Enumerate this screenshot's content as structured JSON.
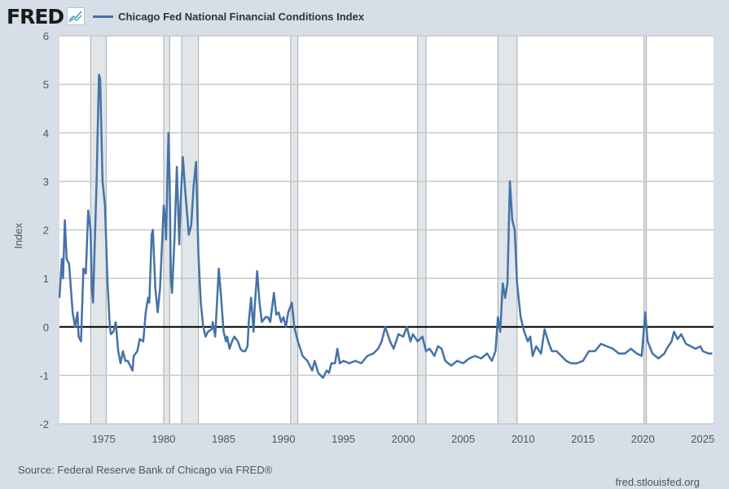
{
  "header": {
    "logo": "FRED",
    "logo_icon": "chart-line-icon",
    "legend_label": "Chicago Fed National Financial Conditions Index"
  },
  "footer": {
    "source": "Source: Federal Reserve Bank of Chicago via FRED®",
    "url": "fred.stlouisfed.org"
  },
  "chart_data": {
    "type": "line",
    "title": "",
    "xlabel": "",
    "ylabel": "Index",
    "xlim": [
      1971.3,
      2025.9
    ],
    "ylim": [
      -2,
      6
    ],
    "grid": "horizontal",
    "legend": "top-left",
    "y_ticks": [
      -2,
      -1,
      0,
      1,
      2,
      3,
      4,
      5,
      6
    ],
    "x_ticks": [
      1975,
      1980,
      1985,
      1990,
      1995,
      2000,
      2005,
      2010,
      2015,
      2020,
      2025
    ],
    "line_color": "#4572a7",
    "recessions": [
      [
        1973.9,
        1975.2
      ],
      [
        1980.0,
        1980.5
      ],
      [
        1981.5,
        1982.9
      ],
      [
        1990.6,
        1991.2
      ],
      [
        2001.2,
        2001.9
      ],
      [
        2007.9,
        2009.5
      ],
      [
        2020.1,
        2020.3
      ]
    ],
    "series": [
      {
        "name": "Chicago Fed National Financial Conditions Index",
        "points": [
          [
            1971.3,
            0.6
          ],
          [
            1971.5,
            1.4
          ],
          [
            1971.6,
            1.0
          ],
          [
            1971.75,
            2.2
          ],
          [
            1971.9,
            1.4
          ],
          [
            1972.1,
            1.3
          ],
          [
            1972.4,
            0.3
          ],
          [
            1972.6,
            0.0
          ],
          [
            1972.8,
            0.3
          ],
          [
            1972.9,
            -0.2
          ],
          [
            1973.1,
            -0.3
          ],
          [
            1973.3,
            1.2
          ],
          [
            1973.5,
            1.1
          ],
          [
            1973.7,
            2.4
          ],
          [
            1973.9,
            2.0
          ],
          [
            1974.0,
            0.8
          ],
          [
            1974.1,
            0.5
          ],
          [
            1974.4,
            3.0
          ],
          [
            1974.6,
            5.2
          ],
          [
            1974.7,
            5.1
          ],
          [
            1974.9,
            3.0
          ],
          [
            1975.1,
            2.5
          ],
          [
            1975.3,
            1.0
          ],
          [
            1975.5,
            0.0
          ],
          [
            1975.6,
            -0.15
          ],
          [
            1975.8,
            -0.1
          ],
          [
            1976.0,
            0.1
          ],
          [
            1976.2,
            -0.5
          ],
          [
            1976.4,
            -0.75
          ],
          [
            1976.6,
            -0.5
          ],
          [
            1976.8,
            -0.7
          ],
          [
            1977.0,
            -0.7
          ],
          [
            1977.2,
            -0.8
          ],
          [
            1977.4,
            -0.9
          ],
          [
            1977.5,
            -0.6
          ],
          [
            1977.8,
            -0.5
          ],
          [
            1978.0,
            -0.25
          ],
          [
            1978.3,
            -0.3
          ],
          [
            1978.5,
            0.3
          ],
          [
            1978.7,
            0.6
          ],
          [
            1978.8,
            0.5
          ],
          [
            1979.0,
            1.9
          ],
          [
            1979.1,
            2.0
          ],
          [
            1979.3,
            0.8
          ],
          [
            1979.5,
            0.3
          ],
          [
            1979.7,
            0.8
          ],
          [
            1980.0,
            2.5
          ],
          [
            1980.1,
            2.3
          ],
          [
            1980.2,
            1.8
          ],
          [
            1980.4,
            4.0
          ],
          [
            1980.5,
            3.0
          ],
          [
            1980.6,
            1.0
          ],
          [
            1980.7,
            0.7
          ],
          [
            1980.9,
            1.8
          ],
          [
            1981.1,
            3.3
          ],
          [
            1981.3,
            1.7
          ],
          [
            1981.4,
            2.5
          ],
          [
            1981.6,
            3.5
          ],
          [
            1981.8,
            2.8
          ],
          [
            1982.1,
            1.9
          ],
          [
            1982.3,
            2.1
          ],
          [
            1982.5,
            2.9
          ],
          [
            1982.7,
            3.4
          ],
          [
            1982.9,
            1.5
          ],
          [
            1983.1,
            0.5
          ],
          [
            1983.3,
            0.0
          ],
          [
            1983.5,
            -0.2
          ],
          [
            1983.7,
            -0.1
          ],
          [
            1984.0,
            -0.05
          ],
          [
            1984.1,
            0.1
          ],
          [
            1984.3,
            -0.2
          ],
          [
            1984.6,
            1.2
          ],
          [
            1984.8,
            0.6
          ],
          [
            1985.0,
            -0.1
          ],
          [
            1985.2,
            -0.3
          ],
          [
            1985.3,
            -0.2
          ],
          [
            1985.5,
            -0.45
          ],
          [
            1985.7,
            -0.3
          ],
          [
            1985.9,
            -0.2
          ],
          [
            1986.2,
            -0.3
          ],
          [
            1986.4,
            -0.45
          ],
          [
            1986.6,
            -0.5
          ],
          [
            1986.8,
            -0.5
          ],
          [
            1987.0,
            -0.4
          ],
          [
            1987.1,
            0.1
          ],
          [
            1987.3,
            0.6
          ],
          [
            1987.5,
            -0.1
          ],
          [
            1987.6,
            0.4
          ],
          [
            1987.8,
            1.15
          ],
          [
            1988.0,
            0.5
          ],
          [
            1988.2,
            0.1
          ],
          [
            1988.5,
            0.2
          ],
          [
            1988.7,
            0.2
          ],
          [
            1988.9,
            0.1
          ],
          [
            1989.2,
            0.7
          ],
          [
            1989.4,
            0.25
          ],
          [
            1989.6,
            0.3
          ],
          [
            1989.8,
            0.1
          ],
          [
            1990.0,
            0.2
          ],
          [
            1990.2,
            0.0
          ],
          [
            1990.4,
            0.3
          ],
          [
            1990.7,
            0.5
          ],
          [
            1990.9,
            0.0
          ],
          [
            1991.2,
            -0.3
          ],
          [
            1991.6,
            -0.6
          ],
          [
            1992.0,
            -0.7
          ],
          [
            1992.4,
            -0.9
          ],
          [
            1992.6,
            -0.7
          ],
          [
            1992.9,
            -0.95
          ],
          [
            1993.3,
            -1.05
          ],
          [
            1993.6,
            -0.9
          ],
          [
            1993.8,
            -0.95
          ],
          [
            1994.0,
            -0.75
          ],
          [
            1994.3,
            -0.75
          ],
          [
            1994.5,
            -0.45
          ],
          [
            1994.7,
            -0.75
          ],
          [
            1995.0,
            -0.7
          ],
          [
            1995.5,
            -0.75
          ],
          [
            1996.0,
            -0.7
          ],
          [
            1996.5,
            -0.75
          ],
          [
            1997.0,
            -0.6
          ],
          [
            1997.5,
            -0.55
          ],
          [
            1997.9,
            -0.45
          ],
          [
            1998.2,
            -0.3
          ],
          [
            1998.5,
            0.0
          ],
          [
            1998.9,
            -0.3
          ],
          [
            1999.2,
            -0.45
          ],
          [
            1999.6,
            -0.15
          ],
          [
            2000.0,
            -0.2
          ],
          [
            2000.3,
            0.0
          ],
          [
            2000.6,
            -0.3
          ],
          [
            2000.8,
            -0.15
          ],
          [
            2001.2,
            -0.3
          ],
          [
            2001.6,
            -0.2
          ],
          [
            2001.9,
            -0.5
          ],
          [
            2002.2,
            -0.45
          ],
          [
            2002.6,
            -0.6
          ],
          [
            2002.9,
            -0.4
          ],
          [
            2003.2,
            -0.45
          ],
          [
            2003.5,
            -0.7
          ],
          [
            2004.0,
            -0.8
          ],
          [
            2004.5,
            -0.7
          ],
          [
            2005.0,
            -0.75
          ],
          [
            2005.5,
            -0.65
          ],
          [
            2006.0,
            -0.6
          ],
          [
            2006.5,
            -0.65
          ],
          [
            2007.0,
            -0.55
          ],
          [
            2007.4,
            -0.7
          ],
          [
            2007.7,
            -0.5
          ],
          [
            2007.9,
            0.2
          ],
          [
            2008.1,
            -0.1
          ],
          [
            2008.3,
            0.9
          ],
          [
            2008.5,
            0.6
          ],
          [
            2008.7,
            0.9
          ],
          [
            2008.9,
            3.0
          ],
          [
            2009.1,
            2.2
          ],
          [
            2009.3,
            2.0
          ],
          [
            2009.5,
            0.9
          ],
          [
            2009.8,
            0.2
          ],
          [
            2010.1,
            -0.1
          ],
          [
            2010.4,
            -0.3
          ],
          [
            2010.6,
            -0.2
          ],
          [
            2010.8,
            -0.6
          ],
          [
            2011.1,
            -0.4
          ],
          [
            2011.5,
            -0.55
          ],
          [
            2011.8,
            -0.05
          ],
          [
            2012.1,
            -0.3
          ],
          [
            2012.4,
            -0.5
          ],
          [
            2012.8,
            -0.5
          ],
          [
            2013.2,
            -0.6
          ],
          [
            2013.6,
            -0.7
          ],
          [
            2014.0,
            -0.75
          ],
          [
            2014.5,
            -0.75
          ],
          [
            2015.0,
            -0.7
          ],
          [
            2015.5,
            -0.5
          ],
          [
            2016.0,
            -0.5
          ],
          [
            2016.5,
            -0.35
          ],
          [
            2017.0,
            -0.4
          ],
          [
            2017.5,
            -0.45
          ],
          [
            2018.0,
            -0.55
          ],
          [
            2018.5,
            -0.55
          ],
          [
            2019.0,
            -0.45
          ],
          [
            2019.5,
            -0.55
          ],
          [
            2019.9,
            -0.6
          ],
          [
            2020.2,
            0.3
          ],
          [
            2020.4,
            -0.3
          ],
          [
            2020.8,
            -0.55
          ],
          [
            2021.3,
            -0.65
          ],
          [
            2021.8,
            -0.55
          ],
          [
            2022.0,
            -0.45
          ],
          [
            2022.4,
            -0.3
          ],
          [
            2022.6,
            -0.1
          ],
          [
            2022.9,
            -0.25
          ],
          [
            2023.2,
            -0.15
          ],
          [
            2023.6,
            -0.35
          ],
          [
            2024.0,
            -0.4
          ],
          [
            2024.4,
            -0.45
          ],
          [
            2024.8,
            -0.4
          ],
          [
            2025.0,
            -0.5
          ],
          [
            2025.5,
            -0.55
          ],
          [
            2025.8,
            -0.55
          ]
        ]
      }
    ]
  }
}
